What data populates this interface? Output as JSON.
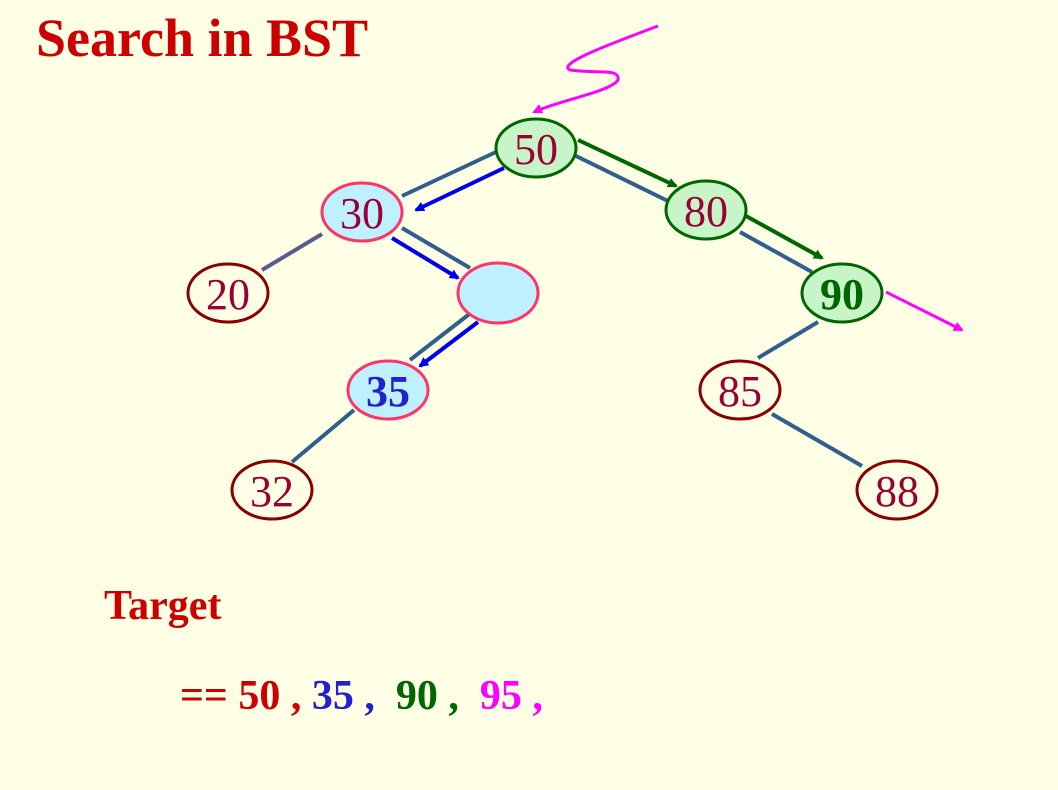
{
  "title": "Search in BST",
  "nodes": [
    {
      "id": "n50",
      "label": "50",
      "bold": false,
      "fill": "#c8f5c8",
      "stroke": "#006600",
      "text_color": "#990033"
    },
    {
      "id": "n30",
      "label": "30",
      "bold": false,
      "fill": "#bff0ff",
      "stroke": "#ff3366",
      "text_color": "#990033"
    },
    {
      "id": "n80",
      "label": "80",
      "bold": false,
      "fill": "#c8f5c8",
      "stroke": "#006600",
      "text_color": "#990033"
    },
    {
      "id": "n20",
      "label": "20",
      "bold": false,
      "fill": "#ffffe5",
      "stroke": "#880000",
      "text_color": "#990033"
    },
    {
      "id": "nempty",
      "label": "",
      "bold": false,
      "fill": "#bff0ff",
      "stroke": "#ff3366",
      "text_color": "#990033"
    },
    {
      "id": "n90",
      "label": "90",
      "bold": true,
      "fill": "#c8f5c8",
      "stroke": "#006600",
      "text_color": "#006600"
    },
    {
      "id": "n35",
      "label": "35",
      "bold": true,
      "fill": "#bff0ff",
      "stroke": "#ff3366",
      "text_color": "#2222cc"
    },
    {
      "id": "n85",
      "label": "85",
      "bold": false,
      "fill": "#ffffe5",
      "stroke": "#880000",
      "text_color": "#990033"
    },
    {
      "id": "n32",
      "label": "32",
      "bold": false,
      "fill": "#ffffe5",
      "stroke": "#880000",
      "text_color": "#990033"
    },
    {
      "id": "n88",
      "label": "88",
      "bold": false,
      "fill": "#ffffe5",
      "stroke": "#880000",
      "text_color": "#990033"
    }
  ],
  "edges": [
    {
      "from": "n50",
      "to": "n30"
    },
    {
      "from": "n50",
      "to": "n80"
    },
    {
      "from": "n30",
      "to": "n20"
    },
    {
      "from": "n30",
      "to": "nempty"
    },
    {
      "from": "n80",
      "to": "n90"
    },
    {
      "from": "nempty",
      "to": "n35"
    },
    {
      "from": "n90",
      "to": "n85"
    },
    {
      "from": "n35",
      "to": "n32"
    },
    {
      "from": "n85",
      "to": "n88"
    }
  ],
  "colors": {
    "background": "#ffffe5",
    "title": "#cc0000",
    "edge": "#2e5f8f",
    "search_35": "#0000ee",
    "search_90": "#006600",
    "search_95": "#ff00ff"
  },
  "target": {
    "label": "Target",
    "operator": "==",
    "values": [
      "50",
      "35",
      "90",
      "95"
    ],
    "separator": ","
  }
}
